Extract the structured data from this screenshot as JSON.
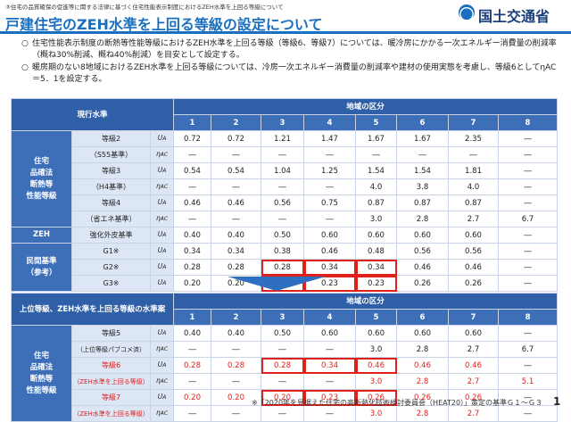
{
  "breadcrumb": "③住宅の品質確保の促進等に関する法律に基づく住宅性能表示制度におけるZEH水準を上回る等級について",
  "logo_text": "国土交通省",
  "title": "戸建住宅のZEH水準を上回る等級の設定について",
  "bullets": [
    "住宅性能表示制度の断熱等性能等級におけるZEH水準を上回る等級（等級6、等級7）については、暖冷房にかかる一次エネルギー消費量の削減率（概ね30%削減、概ね40%削減）を目安として設定する。",
    "暖房期のない8地域におけるZEH水準を上回る等級については、冷房一次エネルギー消費量の削減率や建材の使用実態を考慮し、等級6としてηAC＝5．1を設定する。"
  ],
  "table1": {
    "header_left": "現行水準",
    "region_header": "地域の区分",
    "regions": [
      "1",
      "2",
      "3",
      "4",
      "5",
      "6",
      "7",
      "8"
    ],
    "cat1": "住宅\n品確法\n断熱等\n性能等級",
    "cat2": "ZEH",
    "cat3": "民間基準\n（参考）",
    "rows": [
      {
        "label": "等級2",
        "sym": "UA",
        "vals": [
          "0.72",
          "0.72",
          "1.21",
          "1.47",
          "1.67",
          "1.67",
          "2.35",
          "―"
        ]
      },
      {
        "label": "（S55基準）",
        "sym": "ηAC",
        "vals": [
          "―",
          "―",
          "―",
          "―",
          "―",
          "―",
          "―",
          "―"
        ]
      },
      {
        "label": "等級3",
        "sym": "UA",
        "vals": [
          "0.54",
          "0.54",
          "1.04",
          "1.25",
          "1.54",
          "1.54",
          "1.81",
          "―"
        ]
      },
      {
        "label": "（H4基準）",
        "sym": "ηAC",
        "vals": [
          "―",
          "―",
          "―",
          "―",
          "4.0",
          "3.8",
          "4.0",
          "―"
        ]
      },
      {
        "label": "等級4",
        "sym": "UA",
        "vals": [
          "0.46",
          "0.46",
          "0.56",
          "0.75",
          "0.87",
          "0.87",
          "0.87",
          "―"
        ]
      },
      {
        "label": "（省エネ基準）",
        "sym": "ηAC",
        "vals": [
          "―",
          "―",
          "―",
          "―",
          "3.0",
          "2.8",
          "2.7",
          "6.7"
        ]
      },
      {
        "label": "強化外皮基準",
        "sym": "UA",
        "vals": [
          "0.40",
          "0.40",
          "0.50",
          "0.60",
          "0.60",
          "0.60",
          "0.60",
          "―"
        ]
      },
      {
        "label": "G1※",
        "sym": "UA",
        "vals": [
          "0.34",
          "0.34",
          "0.38",
          "0.46",
          "0.48",
          "0.56",
          "0.56",
          "―"
        ]
      },
      {
        "label": "G2※",
        "sym": "UA",
        "vals": [
          "0.28",
          "0.28",
          "0.28",
          "0.34",
          "0.34",
          "0.46",
          "0.46",
          "―"
        ]
      },
      {
        "label": "G3※",
        "sym": "UA",
        "vals": [
          "0.20",
          "0.20",
          "0.20",
          "0.23",
          "0.23",
          "0.26",
          "0.26",
          "―"
        ]
      }
    ]
  },
  "table2": {
    "header_left": "上位等級、ZEH水準を上回る等級の水準案",
    "region_header": "地域の区分",
    "regions": [
      "1",
      "2",
      "3",
      "4",
      "5",
      "6",
      "7",
      "8"
    ],
    "cat": "住宅\n品確法\n断熱等\n性能等級",
    "rows": [
      {
        "label": "等級5",
        "sym": "UA",
        "vals": [
          "0.40",
          "0.40",
          "0.50",
          "0.60",
          "0.60",
          "0.60",
          "0.60",
          "―"
        ]
      },
      {
        "label": "（上位等級パブコメ済）",
        "sym": "ηAC",
        "vals": [
          "―",
          "―",
          "―",
          "―",
          "3.0",
          "2.8",
          "2.7",
          "6.7"
        ]
      },
      {
        "label": "等級6",
        "sym": "UA",
        "vals": [
          "0.28",
          "0.28",
          "0.28",
          "0.34",
          "0.46",
          "0.46",
          "0.46",
          "―"
        ]
      },
      {
        "label": "（ZEH水準を上回る等級）",
        "sym": "ηAC",
        "vals": [
          "―",
          "―",
          "―",
          "―",
          "3.0",
          "2.8",
          "2.7",
          "5.1"
        ]
      },
      {
        "label": "等級7",
        "sym": "UA",
        "vals": [
          "0.20",
          "0.20",
          "0.20",
          "0.23",
          "0.26",
          "0.26",
          "0.26",
          "―"
        ]
      },
      {
        "label": "（ZEH水準を上回る等級）",
        "sym": "ηAC",
        "vals": [
          "―",
          "―",
          "―",
          "―",
          "3.0",
          "2.8",
          "2.7",
          "―"
        ]
      }
    ]
  },
  "footnote": "※「2020年を見据えた住宅の高断熱化技術検討委員会（HEAT20）」策定の基準Ｇ１～Ｇ３",
  "page_number": "1",
  "colors": {
    "accent": "#1a6fc0",
    "header": "#2f5fa6",
    "highlight": "#e0201b"
  }
}
